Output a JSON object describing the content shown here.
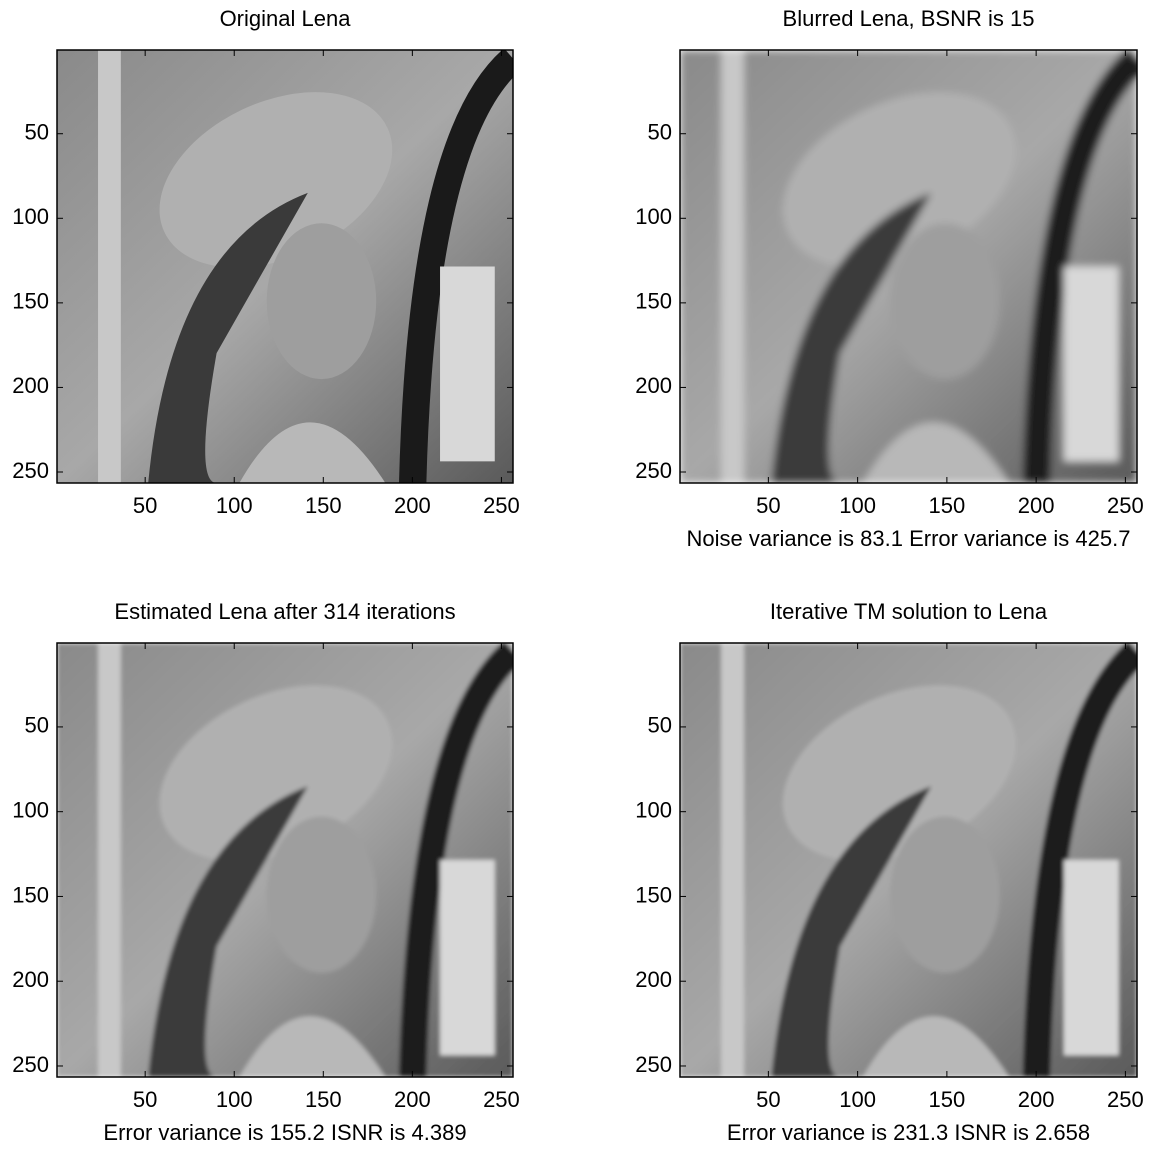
{
  "chart_data": [
    {
      "type": "image",
      "title": "Original Lena",
      "xlim": [
        0.5,
        256.5
      ],
      "ylim": [
        0.5,
        256.5
      ],
      "y_reversed": true,
      "xticks": [
        50,
        100,
        150,
        200,
        250
      ],
      "yticks": [
        50,
        100,
        150,
        200,
        250
      ]
    },
    {
      "type": "image",
      "title": "Blurred Lena, BSNR is 15",
      "xlabel": "Noise variance is 83.1 Error variance is 425.7",
      "xlim": [
        0.5,
        256.5
      ],
      "ylim": [
        0.5,
        256.5
      ],
      "y_reversed": true,
      "xticks": [
        50,
        100,
        150,
        200,
        250
      ],
      "yticks": [
        50,
        100,
        150,
        200,
        250
      ]
    },
    {
      "type": "image",
      "title": "Estimated Lena after 314 iterations",
      "xlabel": "Error variance is 155.2 ISNR is 4.389",
      "xlim": [
        0.5,
        256.5
      ],
      "ylim": [
        0.5,
        256.5
      ],
      "y_reversed": true,
      "xticks": [
        50,
        100,
        150,
        200,
        250
      ],
      "yticks": [
        50,
        100,
        150,
        200,
        250
      ]
    },
    {
      "type": "image",
      "title": "Iterative TM solution to Lena",
      "xlabel": "Error variance is 231.3 ISNR is 2.658",
      "xlim": [
        0.5,
        256.5
      ],
      "ylim": [
        0.5,
        256.5
      ],
      "y_reversed": true,
      "xticks": [
        50,
        100,
        150,
        200,
        250
      ],
      "yticks": [
        50,
        100,
        150,
        200,
        250
      ]
    }
  ]
}
